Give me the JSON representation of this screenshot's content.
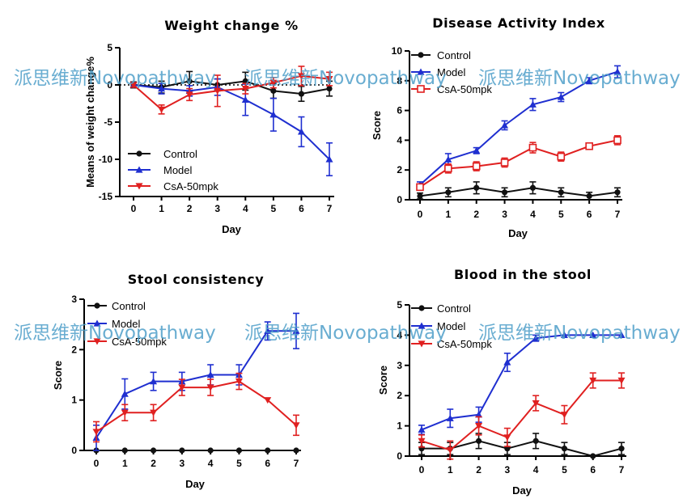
{
  "watermark_text": "派思维新Novopathway",
  "colors": {
    "Control": "#111111",
    "Model": "#1f2fd0",
    "CsA-50mpk": "#e02020",
    "watermark": "#4f9fc9"
  },
  "chart_data": [
    {
      "type": "line",
      "title": "Weight change %",
      "xlabel": "Day",
      "ylabel": "Means of weight change%",
      "x": [
        0,
        1,
        2,
        3,
        4,
        5,
        6,
        7
      ],
      "ylim": [
        -15,
        5
      ],
      "yticks": [
        "5",
        "0",
        "-5",
        "-10",
        "-15"
      ],
      "xticks": [
        "0",
        "1",
        "2",
        "3",
        "4",
        "5",
        "6",
        "7"
      ],
      "baseline_dotted_at": 0,
      "legend_position": "bottom-left",
      "series": [
        {
          "name": "Control",
          "marker": "circle",
          "values": [
            0,
            -0.3,
            0.5,
            0,
            0.5,
            -0.8,
            -1.2,
            -0.5
          ],
          "errors": [
            0.4,
            0.8,
            1.3,
            0.8,
            1.2,
            1.0,
            1.0,
            1.0
          ]
        },
        {
          "name": "Model",
          "marker": "triangle-up",
          "values": [
            0,
            -0.5,
            -0.8,
            -0.3,
            -2,
            -4,
            -6.3,
            -10
          ],
          "errors": [
            0.3,
            0.7,
            0.7,
            1.1,
            2.1,
            2.2,
            2.0,
            2.2
          ]
        },
        {
          "name": "CsA-50mpk",
          "marker": "triangle-down",
          "values": [
            0,
            -3.3,
            -1.3,
            -0.8,
            -0.5,
            0.3,
            1.2,
            0.8
          ],
          "errors": [
            0.3,
            0.6,
            0.8,
            2.1,
            0.7,
            0.7,
            1.3,
            0.9
          ]
        }
      ]
    },
    {
      "type": "line",
      "title": "Disease Activity Index",
      "xlabel": "Day",
      "ylabel": "Score",
      "x": [
        0,
        1,
        2,
        3,
        4,
        5,
        6,
        7
      ],
      "ylim": [
        0,
        10
      ],
      "yticks": [
        "10",
        "8",
        "6",
        "4",
        "2",
        "0"
      ],
      "xticks": [
        "0",
        "1",
        "2",
        "3",
        "4",
        "5",
        "6",
        "7"
      ],
      "legend_position": "top-left",
      "series": [
        {
          "name": "Control",
          "marker": "circle",
          "values": [
            0.25,
            0.5,
            0.8,
            0.5,
            0.8,
            0.5,
            0.25,
            0.5
          ],
          "errors": [
            0.2,
            0.3,
            0.4,
            0.3,
            0.4,
            0.3,
            0.25,
            0.3
          ]
        },
        {
          "name": "Model",
          "marker": "triangle-up",
          "values": [
            1,
            2.7,
            3.3,
            5,
            6.4,
            6.9,
            8,
            8.6
          ],
          "errors": [
            0.2,
            0.4,
            0.2,
            0.3,
            0.4,
            0.3,
            0.2,
            0.4
          ]
        },
        {
          "name": "CsA-50mpk",
          "marker": "open-square",
          "values": [
            0.85,
            2.1,
            2.25,
            2.5,
            3.5,
            2.9,
            3.6,
            4.0
          ],
          "errors": [
            0.15,
            0.3,
            0.3,
            0.3,
            0.35,
            0.3,
            0.2,
            0.3
          ]
        }
      ]
    },
    {
      "type": "line",
      "title": "Stool consistency",
      "xlabel": "Day",
      "ylabel": "Score",
      "x": [
        0,
        1,
        2,
        3,
        4,
        5,
        6,
        7
      ],
      "ylim": [
        0,
        3
      ],
      "yticks": [
        "3",
        "2",
        "1",
        "0"
      ],
      "xticks": [
        "0",
        "1",
        "2",
        "3",
        "4",
        "5",
        "6",
        "7"
      ],
      "legend_position": "top-left",
      "series": [
        {
          "name": "Control",
          "marker": "circle",
          "values": [
            0,
            0,
            0,
            0,
            0,
            0,
            0,
            0
          ],
          "errors": [
            0,
            0,
            0,
            0,
            0,
            0,
            0,
            0
          ]
        },
        {
          "name": "Model",
          "marker": "triangle-up",
          "values": [
            0.25,
            1.12,
            1.37,
            1.37,
            1.5,
            1.5,
            2.37,
            2.37
          ],
          "errors": [
            0.25,
            0.3,
            0.18,
            0.18,
            0.2,
            0.2,
            0.18,
            0.35
          ]
        },
        {
          "name": "CsA-50mpk",
          "marker": "triangle-down",
          "values": [
            0.37,
            0.75,
            0.75,
            1.25,
            1.25,
            1.37,
            1.0,
            0.5
          ],
          "errors": [
            0.2,
            0.16,
            0.16,
            0.16,
            0.16,
            0.16,
            0,
            0.2
          ]
        }
      ]
    },
    {
      "type": "line",
      "title": "Blood in the stool",
      "xlabel": "Day",
      "ylabel": "Score",
      "x": [
        0,
        1,
        2,
        3,
        4,
        5,
        6,
        7
      ],
      "ylim": [
        0,
        5
      ],
      "yticks": [
        "5",
        "4",
        "3",
        "2",
        "1",
        "0"
      ],
      "xticks": [
        "0",
        "1",
        "2",
        "3",
        "4",
        "5",
        "6",
        "7"
      ],
      "legend_position": "top-left",
      "series": [
        {
          "name": "Control",
          "marker": "circle",
          "values": [
            0.25,
            0.25,
            0.5,
            0.25,
            0.5,
            0.25,
            0,
            0.25
          ],
          "errors": [
            0.2,
            0.2,
            0.25,
            0.2,
            0.25,
            0.2,
            0,
            0.2
          ]
        },
        {
          "name": "Model",
          "marker": "triangle-up",
          "values": [
            0.87,
            1.25,
            1.37,
            3.1,
            3.9,
            4,
            4,
            4
          ],
          "errors": [
            0.15,
            0.3,
            0.25,
            0.3,
            0.1,
            0,
            0,
            0
          ]
        },
        {
          "name": "CsA-50mpk",
          "marker": "triangle-down",
          "values": [
            0.5,
            0.2,
            1,
            0.62,
            1.75,
            1.37,
            2.5,
            2.5
          ],
          "errors": [
            0.2,
            0.3,
            0.3,
            0.3,
            0.25,
            0.3,
            0.25,
            0.25
          ]
        }
      ]
    }
  ]
}
